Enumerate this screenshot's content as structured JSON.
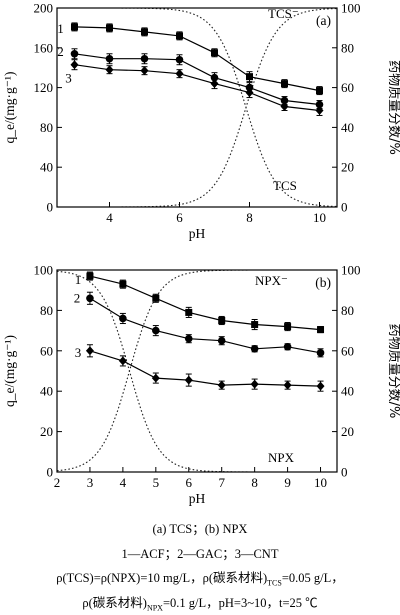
{
  "chart_data": [
    {
      "type": "line",
      "panel_label": "(a)",
      "xlabel": "pH",
      "ylabel_left": "q_e/(mg·g⁻¹)",
      "ylabel_right": "药物质量分数/%",
      "xlim": [
        2.5,
        10.5
      ],
      "ylim_left": [
        0,
        200
      ],
      "ylim_right": [
        0,
        100
      ],
      "xticks": [
        4,
        6,
        8,
        10
      ],
      "yticks_left": [
        0,
        40,
        80,
        120,
        160,
        200
      ],
      "yticks_right": [
        0,
        20,
        40,
        60,
        80,
        100
      ],
      "x": [
        3,
        4,
        5,
        6,
        7,
        8,
        9,
        10
      ],
      "series": [
        {
          "name": "1",
          "marker": "square",
          "values": [
            181,
            180,
            176,
            172,
            155,
            131,
            124,
            117
          ],
          "err": [
            4,
            4,
            4,
            4,
            4,
            5,
            4,
            4
          ]
        },
        {
          "name": "2",
          "marker": "circle",
          "values": [
            154,
            149,
            149,
            148,
            130,
            120,
            107,
            103
          ],
          "err": [
            5,
            5,
            5,
            5,
            5,
            5,
            4,
            4
          ]
        },
        {
          "name": "3",
          "marker": "diamond",
          "values": [
            143,
            138,
            137,
            134,
            124,
            115,
            101,
            97
          ],
          "err": [
            5,
            4,
            4,
            4,
            5,
            5,
            4,
            5
          ]
        }
      ],
      "species_curves": [
        {
          "name": "TCS⁻",
          "pKa": 7.9,
          "rising": true
        },
        {
          "name": "TCS",
          "pKa": 7.9,
          "rising": false
        }
      ]
    },
    {
      "type": "line",
      "panel_label": "(b)",
      "xlabel": "pH",
      "ylabel_left": "q_e/(mg·g⁻¹)",
      "ylabel_right": "药物质量分数/%",
      "xlim": [
        2,
        10.5
      ],
      "ylim_left": [
        0,
        100
      ],
      "ylim_right": [
        0,
        100
      ],
      "xticks": [
        2,
        3,
        4,
        5,
        6,
        7,
        8,
        9,
        10
      ],
      "yticks_left": [
        0,
        20,
        40,
        60,
        80,
        100
      ],
      "yticks_right": [
        0,
        20,
        40,
        60,
        80,
        100
      ],
      "x": [
        3,
        4,
        5,
        6,
        7,
        8,
        9,
        10
      ],
      "series": [
        {
          "name": "1",
          "marker": "square",
          "values": [
            97,
            93,
            86,
            79,
            75,
            73,
            72,
            70.5
          ],
          "err": [
            2,
            2,
            2,
            2.5,
            2,
            2.5,
            2,
            1.5
          ]
        },
        {
          "name": "2",
          "marker": "circle",
          "values": [
            86,
            76,
            70,
            66,
            65,
            61,
            62,
            59
          ],
          "err": [
            3,
            2.5,
            2.5,
            2,
            2,
            1.5,
            1.5,
            2
          ]
        },
        {
          "name": "3",
          "marker": "diamond",
          "values": [
            60,
            55,
            46.5,
            45.5,
            43,
            43.5,
            43,
            42.5
          ],
          "err": [
            3,
            2.5,
            2.5,
            3,
            2,
            2.5,
            2,
            2.5
          ]
        }
      ],
      "species_curves": [
        {
          "name": "NPX⁻",
          "pKa": 4.2,
          "rising": true
        },
        {
          "name": "NPX",
          "pKa": 4.2,
          "rising": false
        }
      ]
    }
  ],
  "caption": {
    "line1": "(a) TCS；(b) NPX",
    "line2": "1—ACF；2—GAC；3—CNT",
    "line3_part1": "ρ(TCS)=ρ(NPX)=10 mg/L，ρ(碳系材料)",
    "line3_sub1": "TCS",
    "line3_part2": "=0.05 g/L，",
    "line4_part1": "ρ(碳系材料)",
    "line4_sub1": "NPX",
    "line4_part2": "=0.1 g/L，pH=3~10，t=25 ℃"
  }
}
